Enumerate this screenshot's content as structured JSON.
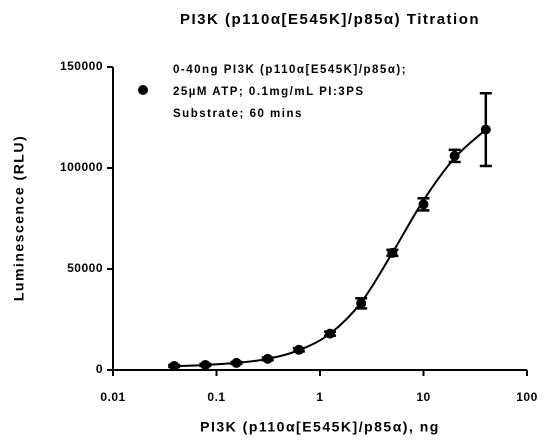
{
  "chart_data": {
    "type": "scatter",
    "title": "PI3K (p110α[E545K]/p85α) Titration",
    "xlabel": "PI3K (p110α[E545K]/p85α), ng",
    "ylabel": "Luminescence (RLU)",
    "xscale": "log",
    "xlim": [
      0.01,
      100
    ],
    "xticks": [
      0.01,
      0.1,
      1,
      10,
      100
    ],
    "ylim": [
      0,
      150000
    ],
    "yticks": [
      0,
      50000,
      100000,
      150000
    ],
    "legend_position": "upper left",
    "series": [
      {
        "name": [
          "0-40ng PI3K (p110α[E545K]/p85α);",
          "25µM ATP; 0.1mg/mL PI:3PS",
          "Substrate; 60 mins"
        ],
        "color": "#000000",
        "x": [
          0.039,
          0.078,
          0.156,
          0.3125,
          0.625,
          1.25,
          2.5,
          5,
          10,
          20,
          40
        ],
        "values": [
          2000,
          2500,
          3500,
          5500,
          10000,
          18000,
          33000,
          58000,
          82000,
          106000,
          119000
        ],
        "errors": [
          500,
          500,
          500,
          700,
          800,
          1000,
          2500,
          1500,
          3000,
          3000,
          18000
        ]
      }
    ],
    "curve": {
      "x": [
        0.039,
        0.078,
        0.156,
        0.3125,
        0.625,
        1.25,
        2.5,
        5,
        10,
        20,
        40
      ],
      "values": [
        1900,
        2500,
        3500,
        5500,
        9800,
        18000,
        33500,
        58000,
        84000,
        105000,
        119000
      ]
    }
  }
}
